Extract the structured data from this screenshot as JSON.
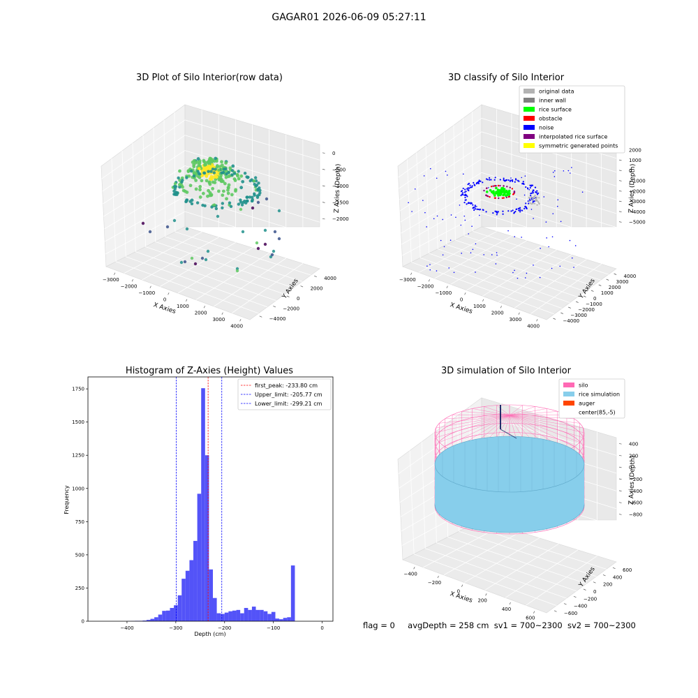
{
  "figure": {
    "suptitle": "GAGAR01 2026-06-09 05:27:11"
  },
  "status": {
    "flag": "flag = 0",
    "avg_depth": "avgDepth = 258 cm",
    "sv1": "sv1 = 700~2300",
    "sv2": "sv2 = 700~2300"
  },
  "colors": {
    "original": "#b3b3b3",
    "inner_wall": "#808080",
    "rice_surface": "#00ff00",
    "obstacle": "#ff0000",
    "noise": "#0000ff",
    "interpolated": "#800080",
    "symmetric": "#ffff00",
    "silo": "#ff69b4",
    "rice_sim": "#87ceeb",
    "auger": "#ff4500",
    "hist_bar": "#4d4df8"
  },
  "chart_data": [
    {
      "type": "scatter",
      "title": "3D Plot of Silo Interior(row data)",
      "xlabel": "X Axies",
      "ylabel": "Y Axies",
      "zlabel": "Z Axies (Depth)",
      "x_ticks": [
        "−3000",
        "−2000",
        "−1000",
        "0",
        "1000",
        "2000",
        "3000",
        "4000"
      ],
      "y_ticks": [
        "−4000",
        "−2000",
        "0",
        "2000",
        "4000"
      ],
      "z_ticks": [
        "0",
        "−500",
        "−1000",
        "−1500",
        "−2000"
      ],
      "colormap": "viridis"
    },
    {
      "type": "scatter",
      "title": "3D classify of Silo Interior",
      "xlabel": "X Axies",
      "ylabel": "Y Axies",
      "zlabel": "Z Axies (Depth)",
      "x_ticks": [
        "−3000",
        "−2000",
        "−1000",
        "0",
        "1000",
        "2000",
        "3000",
        "4000"
      ],
      "y_ticks": [
        "−4000",
        "−3000",
        "−2000",
        "−1000",
        "0",
        "1000",
        "2000",
        "3000",
        "4000"
      ],
      "z_ticks": [
        "2000",
        "1000",
        "0",
        "−1000",
        "−2000",
        "−3000",
        "−4000",
        "−5000"
      ],
      "legend": [
        "original data",
        "inner wall",
        "rice surface",
        "obstacle",
        "noise",
        "interpolated rice surface",
        "symmetric generated points"
      ],
      "legend_position": "top-right"
    },
    {
      "type": "bar",
      "title": "Histogram of Z-Axies (Height) Values",
      "xlabel": "Depth (cm)",
      "ylabel": "Frequency",
      "xlim": [
        -480,
        22
      ],
      "ylim": [
        0,
        1840
      ],
      "x_ticks": [
        -400,
        -300,
        -200,
        -100,
        0
      ],
      "x_tick_labels": [
        "−400",
        "−300",
        "−200",
        "−100",
        "0"
      ],
      "y_ticks": [
        0,
        250,
        500,
        750,
        1000,
        1250,
        1500,
        1750
      ],
      "bin_start": -480,
      "bin_width": 8,
      "values": [
        0,
        0,
        0,
        0,
        0,
        0,
        0,
        0,
        0,
        0,
        1,
        2,
        3,
        3,
        5,
        10,
        18,
        30,
        50,
        78,
        80,
        100,
        120,
        195,
        320,
        380,
        460,
        605,
        960,
        1755,
        1250,
        390,
        175,
        60,
        55,
        65,
        75,
        80,
        85,
        60,
        100,
        85,
        110,
        85,
        85,
        75,
        55,
        70,
        20,
        15,
        25,
        30,
        420,
        0
      ],
      "vlines": [
        {
          "name": "first_peak: -233.80 cm",
          "x": -233.8,
          "color": "#ff0000"
        },
        {
          "name": "Upper_limit: -205.77 cm",
          "x": -205.77,
          "color": "#0000ff"
        },
        {
          "name": "Lower_limit: -299.21 cm",
          "x": -299.21,
          "color": "#0000ff"
        }
      ],
      "legend_position": "top-right"
    },
    {
      "type": "wireframe",
      "title": "3D simulation of Silo Interior",
      "xlabel": "X Axies",
      "ylabel": "Y Axies",
      "zlabel": "Z Axies (Depth)",
      "x_ticks": [
        "−400",
        "−200",
        "0",
        "200",
        "400",
        "600"
      ],
      "y_ticks": [
        "−600",
        "−400",
        "−200",
        "0",
        "200",
        "400",
        "600"
      ],
      "z_ticks": [
        "400",
        "200",
        "0",
        "−200",
        "−400",
        "−600",
        "−800"
      ],
      "legend": [
        "silo",
        "rice simulation",
        "auger",
        "center(85,-5)"
      ],
      "legend_position": "top-right"
    }
  ]
}
